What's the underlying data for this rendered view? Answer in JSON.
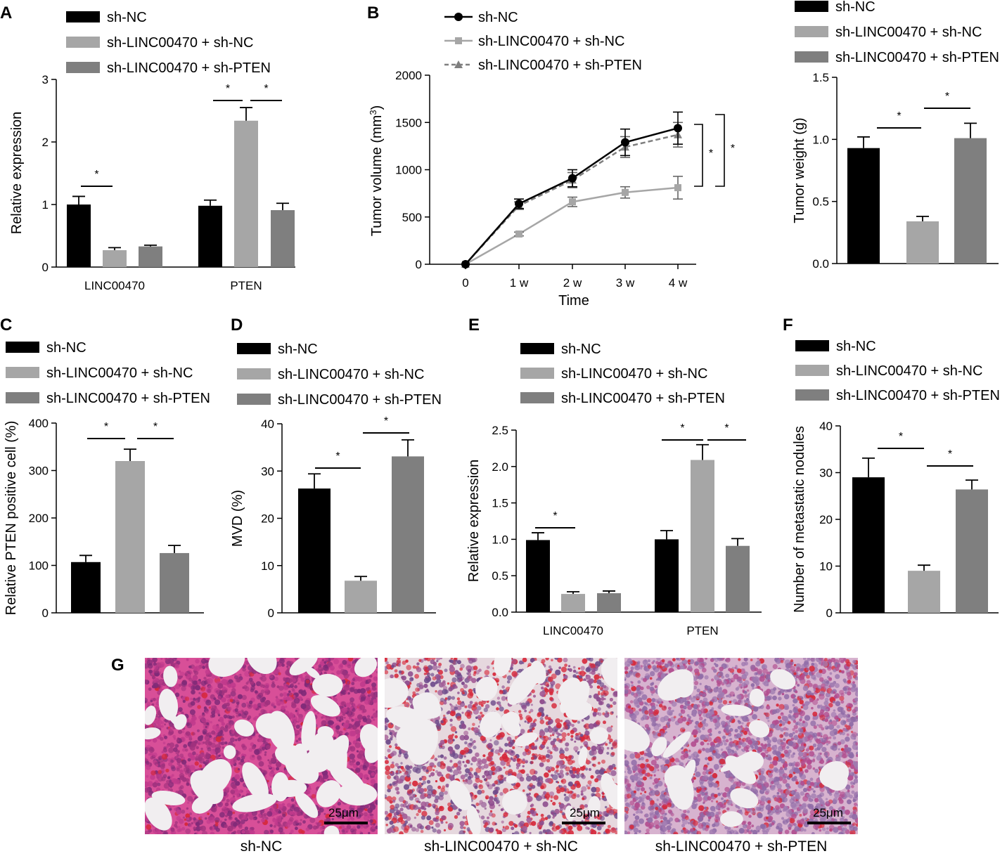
{
  "colors": {
    "sh_nc": "#000000",
    "sh_linc_nc": "#a6a6a6",
    "sh_linc_pten": "#7f7f7f"
  },
  "chart_data": [
    {
      "panel": "A",
      "type": "bar",
      "categories": [
        "LINC00470",
        "PTEN"
      ],
      "series": [
        {
          "name": "sh-NC",
          "values": [
            1.0,
            0.98
          ],
          "errors": [
            0.13,
            0.09
          ]
        },
        {
          "name": "sh-LINC00470 + sh-NC",
          "values": [
            0.27,
            2.34
          ],
          "errors": [
            0.04,
            0.21
          ]
        },
        {
          "name": "sh-LINC00470 + sh-PTEN",
          "values": [
            0.33,
            0.91
          ],
          "errors": [
            0.02,
            0.11
          ]
        }
      ],
      "ylabel": "Relative expression",
      "ylim": [
        0,
        3
      ],
      "yticks": [
        "0",
        "1",
        "2",
        "3"
      ],
      "significance": [
        "*",
        "*",
        "*"
      ]
    },
    {
      "panel": "B",
      "type": "line",
      "x": [
        "0",
        "1 w",
        "2 w",
        "3 w",
        "4 w"
      ],
      "series": [
        {
          "name": "sh-NC",
          "values": [
            0,
            640,
            910,
            1290,
            1440
          ],
          "errors": [
            0,
            50,
            90,
            140,
            170
          ]
        },
        {
          "name": "sh-LINC00470 + sh-NC",
          "values": [
            0,
            320,
            660,
            760,
            810
          ],
          "errors": [
            0,
            20,
            50,
            60,
            120
          ]
        },
        {
          "name": "sh-LINC00470 + sh-PTEN",
          "values": [
            0,
            620,
            890,
            1240,
            1370
          ],
          "errors": [
            0,
            40,
            80,
            110,
            130
          ]
        }
      ],
      "xlabel": "Time",
      "ylabel": "Tumor volume (mm",
      "ylabel_sup": "3",
      "ylabel_end": ")",
      "ylim": [
        0,
        2000
      ],
      "yticks": [
        "0",
        "500",
        "1000",
        "1500",
        "2000"
      ],
      "significance": [
        "*",
        "*"
      ]
    },
    {
      "panel": "",
      "type": "bar",
      "categories": [
        "sh-NC",
        "sh-LINC00470 + sh-NC",
        "sh-LINC00470 + sh-PTEN"
      ],
      "values": [
        0.93,
        0.34,
        1.01
      ],
      "errors": [
        0.09,
        0.04,
        0.12
      ],
      "ylabel": "Tumor weight (g)",
      "ylim": [
        0,
        1.5
      ],
      "yticks": [
        "0.0",
        "0.5",
        "1.0",
        "1.5"
      ],
      "significance": [
        "*",
        "*"
      ]
    },
    {
      "panel": "C",
      "type": "bar",
      "categories": [
        "sh-NC",
        "sh-LINC00470 + sh-NC",
        "sh-LINC00470 + sh-PTEN"
      ],
      "values": [
        107,
        320,
        126
      ],
      "errors": [
        14,
        25,
        16
      ],
      "ylabel": "Relative PTEN positive cell (%)",
      "ylim": [
        0,
        400
      ],
      "yticks": [
        "0",
        "100",
        "200",
        "300",
        "400"
      ],
      "significance": [
        "*",
        "*"
      ]
    },
    {
      "panel": "D",
      "type": "bar",
      "categories": [
        "sh-NC",
        "sh-LINC00470 + sh-NC",
        "sh-LINC00470 + sh-PTEN"
      ],
      "values": [
        26.3,
        6.8,
        33.1
      ],
      "errors": [
        3.1,
        0.9,
        3.5
      ],
      "ylabel": "MVD (%)",
      "ylim": [
        0,
        40
      ],
      "yticks": [
        "0",
        "10",
        "20",
        "30",
        "40"
      ],
      "significance": [
        "*",
        "*"
      ]
    },
    {
      "panel": "E",
      "type": "bar",
      "categories": [
        "LINC00470",
        "PTEN"
      ],
      "series": [
        {
          "name": "sh-NC",
          "values": [
            0.99,
            1.0
          ],
          "errors": [
            0.1,
            0.12
          ]
        },
        {
          "name": "sh-LINC00470 + sh-NC",
          "values": [
            0.25,
            2.09
          ],
          "errors": [
            0.03,
            0.21
          ]
        },
        {
          "name": "sh-LINC00470 + sh-PTEN",
          "values": [
            0.26,
            0.91
          ],
          "errors": [
            0.03,
            0.1
          ]
        }
      ],
      "ylabel": "Relative expression",
      "ylim": [
        0,
        2.5
      ],
      "yticks": [
        "0.0",
        "0.5",
        "1.0",
        "1.5",
        "2.0",
        "2.5"
      ],
      "significance": [
        "*",
        "*",
        "*"
      ]
    },
    {
      "panel": "F",
      "type": "bar",
      "categories": [
        "sh-NC",
        "sh-LINC00470 + sh-NC",
        "sh-LINC00470 + sh-PTEN"
      ],
      "values": [
        29,
        9,
        26.4
      ],
      "errors": [
        4.1,
        1.2,
        2.0
      ],
      "ylabel": "Number of metastatic nodules",
      "ylim": [
        0,
        40
      ],
      "yticks": [
        "0",
        "10",
        "20",
        "30",
        "40"
      ],
      "significance": [
        "*",
        "*"
      ]
    }
  ],
  "panel_g": {
    "label": "G",
    "images": [
      {
        "caption": "sh-NC",
        "scale": "25μm"
      },
      {
        "caption": "sh-LINC00470 + sh-NC",
        "scale": "25μm"
      },
      {
        "caption": "sh-LINC00470 + sh-PTEN",
        "scale": "25μm"
      }
    ]
  }
}
